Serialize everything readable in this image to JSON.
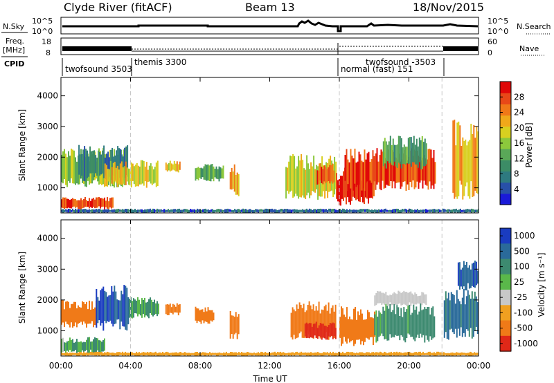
{
  "header": {
    "station": "Clyde River (fitACF)",
    "beam": "Beam 13",
    "date": "18/Nov/2015"
  },
  "top_panels": {
    "nsky_label": "N.Sky",
    "nsky_ticks": [
      "10^5",
      "10^0"
    ],
    "nsearch_label": "N.Search",
    "nsearch_ticks": [
      "10^5",
      "10^0"
    ],
    "freq_label_1": "Freq.",
    "freq_label_2": "[MHz]",
    "freq_ticks": [
      "18",
      "8"
    ],
    "nave_label": "Nave",
    "nave_ticks": [
      "60",
      "0"
    ],
    "cpid_label": "CPID",
    "cpid_segments": [
      {
        "label": "twofsound 3503",
        "start_h": 0
      },
      {
        "label": "themis 3300",
        "start_h": 4.0
      },
      {
        "label": "normal (fast) 151",
        "start_h": 16.0
      },
      {
        "label": "twofsound -3503",
        "start_h": 16.0
      },
      {
        "label": "",
        "start_h": 21.9
      }
    ]
  },
  "chart_data": [
    {
      "type": "heatmap",
      "name": "power",
      "ylabel": "Slant Range [km]",
      "x_ticks": [
        "00:00",
        "04:00",
        "08:00",
        "12:00",
        "16:00",
        "20:00",
        "00:00"
      ],
      "x_range_hours": [
        0,
        24
      ],
      "y_ticks": [
        1000,
        2000,
        3000,
        4000
      ],
      "y_range_km": [
        180,
        4600
      ],
      "colorbar": {
        "label": "Power [dB]",
        "ticks": [
          "28",
          "24",
          "20",
          "16",
          "12",
          "8",
          "4"
        ],
        "range": [
          0,
          32
        ],
        "colors": [
          "#1a1ad8",
          "#2850a8",
          "#2e7a80",
          "#3c8c66",
          "#5aa858",
          "#8cc83c",
          "#d8d020",
          "#f0a81a",
          "#f07818",
          "#e84818",
          "#e00808"
        ]
      },
      "cpid_boundaries_h": [
        4.0,
        16.0,
        21.9
      ],
      "echo_regions": [
        {
          "t0": 0.0,
          "t1": 3.6,
          "r0": 1000,
          "r1": 2300,
          "value": 16
        },
        {
          "t0": 1.0,
          "t1": 3.8,
          "r0": 1200,
          "r1": 2400,
          "value": 8
        },
        {
          "t0": 2.5,
          "t1": 5.6,
          "r0": 1000,
          "r1": 1900,
          "value": 20
        },
        {
          "t0": 0.0,
          "t1": 3.0,
          "r0": 300,
          "r1": 700,
          "value": 28
        },
        {
          "t0": 6.0,
          "t1": 6.8,
          "r0": 1500,
          "r1": 1900,
          "value": 20
        },
        {
          "t0": 7.7,
          "t1": 9.3,
          "r0": 1200,
          "r1": 1800,
          "value": 14
        },
        {
          "t0": 9.7,
          "t1": 10.2,
          "r0": 700,
          "r1": 1800,
          "value": 22
        },
        {
          "t0": 12.9,
          "t1": 15.8,
          "r0": 600,
          "r1": 2100,
          "value": 18
        },
        {
          "t0": 14.7,
          "t1": 15.7,
          "r0": 1100,
          "r1": 1800,
          "value": 28
        },
        {
          "t0": 15.8,
          "t1": 18.0,
          "r0": 400,
          "r1": 1700,
          "value": 30
        },
        {
          "t0": 16.3,
          "t1": 21.5,
          "r0": 900,
          "r1": 2300,
          "value": 28
        },
        {
          "t0": 18.5,
          "t1": 21.0,
          "r0": 1600,
          "r1": 2700,
          "value": 12
        },
        {
          "t0": 22.5,
          "t1": 24.0,
          "r0": 600,
          "r1": 3300,
          "value": 22
        },
        {
          "t0": 0.0,
          "t1": 24.0,
          "r0": 180,
          "r1": 320,
          "value": 6
        }
      ]
    },
    {
      "type": "heatmap",
      "name": "velocity",
      "ylabel": "Slant Range [km]",
      "xlabel": "Time UT",
      "x_ticks": [
        "00:00",
        "04:00",
        "08:00",
        "12:00",
        "16:00",
        "20:00",
        "00:00"
      ],
      "x_range_hours": [
        0,
        24
      ],
      "y_ticks": [
        1000,
        2000,
        3000,
        4000
      ],
      "y_range_km": [
        180,
        4600
      ],
      "colorbar": {
        "label": "Velocity  [m s⁻¹]",
        "ticks": [
          "1000",
          "500",
          "100",
          "25",
          "-25",
          "-100",
          "-500",
          "-1000"
        ],
        "colors": [
          "#1a3cc0",
          "#2a6a9a",
          "#3d8a70",
          "#5ab84a",
          "#c8c8c8",
          "#f0a020",
          "#f07a18",
          "#e02818"
        ]
      },
      "cpid_boundaries_h": [
        4.0,
        16.0,
        21.9
      ],
      "echo_regions": [
        {
          "t0": 0.0,
          "t1": 2.0,
          "r0": 1100,
          "r1": 2000,
          "value": -150
        },
        {
          "t0": 2.0,
          "t1": 3.9,
          "r0": 1000,
          "r1": 2500,
          "value": 700
        },
        {
          "t0": 3.9,
          "t1": 5.6,
          "r0": 1400,
          "r1": 2100,
          "value": 80
        },
        {
          "t0": 0.0,
          "t1": 2.5,
          "r0": 250,
          "r1": 800,
          "value": 60
        },
        {
          "t0": 6.0,
          "t1": 6.8,
          "r0": 1500,
          "r1": 1900,
          "value": -150
        },
        {
          "t0": 7.7,
          "t1": 8.8,
          "r0": 1200,
          "r1": 1800,
          "value": -150
        },
        {
          "t0": 9.7,
          "t1": 10.2,
          "r0": 700,
          "r1": 1700,
          "value": -150
        },
        {
          "t0": 13.2,
          "t1": 15.8,
          "r0": 700,
          "r1": 2000,
          "value": -150
        },
        {
          "t0": 14.0,
          "t1": 15.8,
          "r0": 700,
          "r1": 1300,
          "value": -700
        },
        {
          "t0": 16.0,
          "t1": 18.0,
          "r0": 500,
          "r1": 1800,
          "value": -200
        },
        {
          "t0": 18.0,
          "t1": 21.5,
          "r0": 600,
          "r1": 1900,
          "value": 100
        },
        {
          "t0": 18.0,
          "t1": 21.0,
          "r0": 1800,
          "r1": 2300,
          "value": 0
        },
        {
          "t0": 22.0,
          "t1": 24.0,
          "r0": 700,
          "r1": 2400,
          "value": 300
        },
        {
          "t0": 22.8,
          "t1": 24.0,
          "r0": 2300,
          "r1": 3300,
          "value": 600
        },
        {
          "t0": 0.0,
          "t1": 24.0,
          "r0": 180,
          "r1": 320,
          "value": -50
        }
      ]
    }
  ]
}
